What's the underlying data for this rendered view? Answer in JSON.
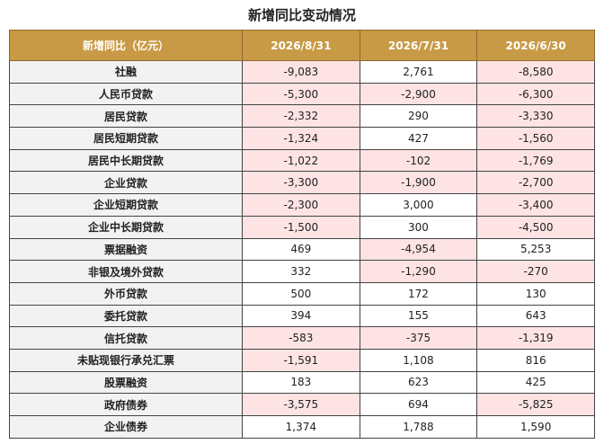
{
  "title": "新增同比变动情况",
  "table": {
    "header": [
      "新增同比（亿元）",
      "2026/8/31",
      "2026/7/31",
      "2026/6/30"
    ],
    "rows": [
      [
        "社融",
        "-9,083",
        "2,761",
        "-8,580"
      ],
      [
        "人民币贷款",
        "-5,300",
        "-2,900",
        "-6,300"
      ],
      [
        "居民贷款",
        "-2,332",
        "290",
        "-3,330"
      ],
      [
        "居民短期贷款",
        "-1,324",
        "427",
        "-1,560"
      ],
      [
        "居民中长期贷款",
        "-1,022",
        "-102",
        "-1,769"
      ],
      [
        "企业贷款",
        "-3,300",
        "-1,900",
        "-2,700"
      ],
      [
        "企业短期贷款",
        "-2,300",
        "3,000",
        "-3,400"
      ],
      [
        "企业中长期贷款",
        "-1,500",
        "300",
        "-4,500"
      ],
      [
        "票据融资",
        "469",
        "-4,954",
        "5,253"
      ],
      [
        "非银及境外贷款",
        "332",
        "-1,290",
        "-270"
      ],
      [
        "外币贷款",
        "500",
        "172",
        "130"
      ],
      [
        "委托贷款",
        "394",
        "155",
        "643"
      ],
      [
        "信托贷款",
        "-583",
        "-375",
        "-1,319"
      ],
      [
        "未贴现银行承兑汇票",
        "-1,591",
        "1,108",
        "816"
      ],
      [
        "股票融资",
        "183",
        "623",
        "425"
      ],
      [
        "政府债券",
        "-3,575",
        "694",
        "-5,825"
      ],
      [
        "企业债券",
        "1,374",
        "1,788",
        "1,590"
      ]
    ]
  }
}
